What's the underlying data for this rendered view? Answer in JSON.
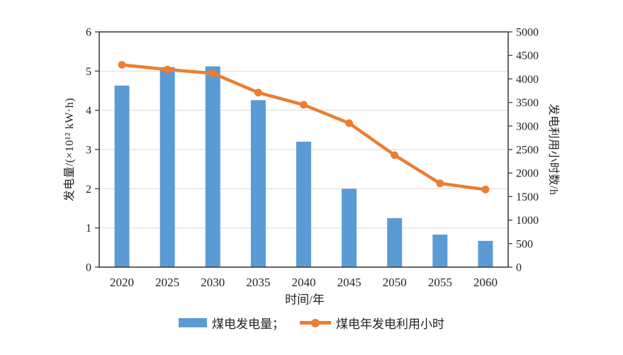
{
  "chart_data": {
    "type": "combo-bar-line",
    "title": "",
    "categories": [
      "2020",
      "2025",
      "2030",
      "2035",
      "2040",
      "2045",
      "2050",
      "2055",
      "2060"
    ],
    "series": [
      {
        "name": "煤电发电量",
        "chart": "bar",
        "axis": "left",
        "color": "#5b9bd5",
        "values": [
          4.63,
          5.1,
          5.12,
          4.26,
          3.2,
          2.0,
          1.25,
          0.83,
          0.67
        ]
      },
      {
        "name": "煤电年发电利用小时",
        "chart": "line",
        "axis": "right",
        "color": "#ed7d31",
        "values": [
          4300,
          4200,
          4120,
          3710,
          3450,
          3060,
          2380,
          1780,
          1650
        ]
      }
    ],
    "x_axis": {
      "label": "时间/年",
      "tick_labels": [
        "2020",
        "2025",
        "2030",
        "2035",
        "2040",
        "2045",
        "2050",
        "2055",
        "2060"
      ]
    },
    "left_axis": {
      "label": "发电量/(×10¹² kW·h)",
      "min": 0,
      "max": 6,
      "step": 1,
      "tick_labels": [
        "0",
        "1",
        "2",
        "3",
        "4",
        "5",
        "6"
      ]
    },
    "right_axis": {
      "label": "发电利用小时数/h",
      "min": 0,
      "max": 5000,
      "step": 500,
      "tick_labels": [
        "0",
        "500",
        "1000",
        "1500",
        "2000",
        "2500",
        "3000",
        "3500",
        "4000",
        "4500",
        "5000"
      ]
    },
    "legend": {
      "position": "bottom",
      "items": [
        {
          "label": "煤电发电量；",
          "swatch": "bar",
          "color": "#5b9bd5"
        },
        {
          "label": "煤电年发电利用小时",
          "swatch": "line-marker",
          "color": "#ed7d31"
        }
      ]
    },
    "grid": {
      "horizontal": true,
      "color": "#d9d9d9"
    },
    "frame_color": "#3f3f3f",
    "text_color": "#222222",
    "background": "#ffffff"
  }
}
